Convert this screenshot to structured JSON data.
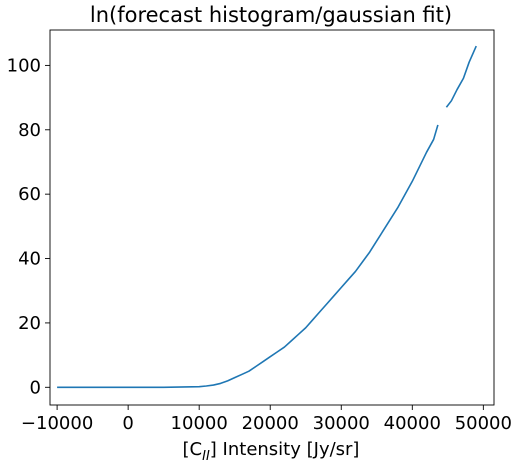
{
  "chart_data": {
    "type": "line",
    "title": "ln(forecast histogram/gaussian fit)",
    "xlabel_prefix": "[C",
    "xlabel_subscript": "II",
    "xlabel_suffix": "] Intensity [Jy/sr]",
    "xlim": [
      -11000,
      51500
    ],
    "ylim": [
      -5.5,
      111
    ],
    "xticks": [
      -10000,
      0,
      10000,
      20000,
      30000,
      40000,
      50000
    ],
    "xtick_labels": [
      "−10000",
      "0",
      "10000",
      "20000",
      "30000",
      "40000",
      "50000"
    ],
    "yticks": [
      0,
      20,
      40,
      60,
      80,
      100
    ],
    "ytick_labels": [
      "0",
      "20",
      "40",
      "60",
      "80",
      "100"
    ],
    "grid": false,
    "line_color": "#1f77b4",
    "series": [
      {
        "segments": [
          [
            [
              -10000,
              0
            ],
            [
              -5000,
              0
            ],
            [
              0,
              0
            ],
            [
              5000,
              0
            ],
            [
              8000,
              0.1
            ],
            [
              10000,
              0.2
            ],
            [
              11000,
              0.4
            ],
            [
              12000,
              0.7
            ],
            [
              13000,
              1.2
            ],
            [
              14000,
              2
            ],
            [
              15000,
              3
            ],
            [
              16000,
              4
            ],
            [
              17000,
              5
            ],
            [
              18000,
              6.5
            ],
            [
              19000,
              8
            ],
            [
              20000,
              9.5
            ],
            [
              21000,
              11
            ],
            [
              22000,
              12.5
            ],
            [
              23000,
              14.5
            ],
            [
              24000,
              16.5
            ],
            [
              25000,
              18.5
            ],
            [
              26000,
              21
            ],
            [
              27000,
              23.5
            ],
            [
              28000,
              26
            ],
            [
              29000,
              28.5
            ],
            [
              30000,
              31
            ],
            [
              31000,
              33.5
            ],
            [
              32000,
              36
            ],
            [
              33000,
              39
            ],
            [
              34000,
              42
            ],
            [
              35000,
              45.5
            ],
            [
              36000,
              49
            ],
            [
              37000,
              52.5
            ],
            [
              38000,
              56
            ],
            [
              39000,
              60
            ],
            [
              40000,
              64
            ],
            [
              41000,
              68.5
            ],
            [
              42000,
              73
            ],
            [
              43000,
              77
            ],
            [
              43600,
              81.5
            ]
          ],
          [
            [
              44800,
              87
            ],
            [
              45500,
              89
            ],
            [
              46300,
              92.5
            ],
            [
              47200,
              96
            ],
            [
              48000,
              101
            ],
            [
              49000,
              106
            ]
          ]
        ]
      }
    ]
  }
}
